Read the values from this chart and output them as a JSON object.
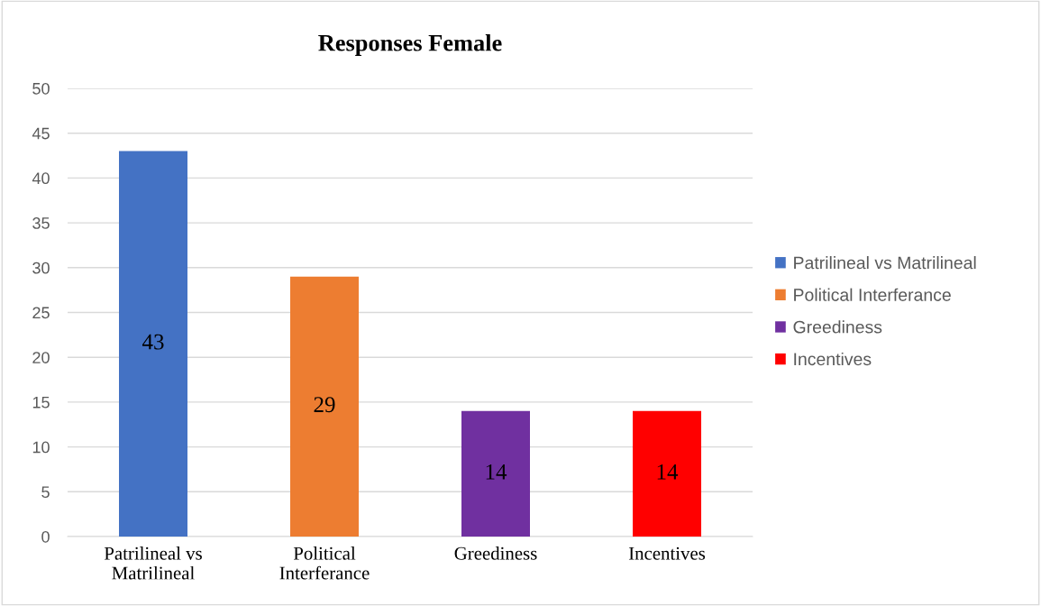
{
  "chart_data": {
    "type": "bar",
    "title": "Responses Female",
    "categories": [
      "Patrilineal vs Matrilineal",
      "Political Interferance",
      "Greediness",
      "Incentives"
    ],
    "series": [
      {
        "name": "Patrilineal vs Matrilineal",
        "color": "#4472c4",
        "values": [
          43,
          null,
          null,
          null
        ]
      },
      {
        "name": "Political Interferance",
        "color": "#ed7d31",
        "values": [
          null,
          29,
          null,
          null
        ]
      },
      {
        "name": "Greediness",
        "color": "#7030a0",
        "values": [
          null,
          null,
          14,
          null
        ]
      },
      {
        "name": "Incentives",
        "color": "#ff0000",
        "values": [
          null,
          null,
          null,
          14
        ]
      }
    ],
    "ylim": [
      0,
      50
    ],
    "yticks": [
      0,
      5,
      10,
      15,
      20,
      25,
      30,
      35,
      40,
      45,
      50
    ],
    "grid": "y",
    "legend": "right",
    "data_labels": true
  }
}
